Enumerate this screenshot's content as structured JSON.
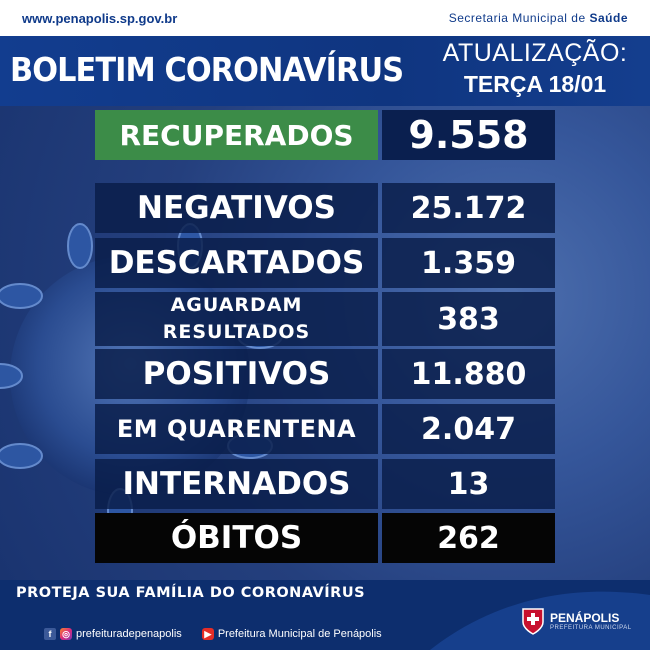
{
  "header": {
    "website": "www.penapolis.sp.gov.br",
    "department_prefix": "Secretaria Municipal de",
    "department_name": "Saúde",
    "title": "BOLETIM CORONAVÍRUS",
    "update_label": "ATUALIZAÇÃO:",
    "update_date": "TERÇA 18/01"
  },
  "stats": [
    {
      "label": "RECUPERADOS",
      "value": "9.558"
    },
    {
      "label": "NEGATIVOS",
      "value": "25.172"
    },
    {
      "label": "DESCARTADOS",
      "value": "1.359"
    },
    {
      "label_line1": "AGUARDAM",
      "label_line2": "RESULTADOS",
      "value": "383"
    },
    {
      "label": "POSITIVOS",
      "value": "11.880"
    },
    {
      "label": "EM QUARENTENA",
      "value": "2.047"
    },
    {
      "label": "INTERNADOS",
      "value": "13"
    },
    {
      "label": "ÓBITOS",
      "value": "262"
    }
  ],
  "footer": {
    "slogan": "PROTEJA SUA FAMÍLIA DO CORONAVÍRUS",
    "social_handle": "prefeituradepenapolis",
    "youtube_channel": "Prefeitura Municipal de Penápolis",
    "logo_name": "PENÁPOLIS",
    "logo_sub": "PREFEITURA MUNICIPAL",
    "icons": [
      "facebook-icon",
      "instagram-icon",
      "youtube-icon"
    ]
  },
  "colors": {
    "brand_blue": "#0f3a8a",
    "recovered_green": "#3c8c48",
    "deaths_black": "#050505"
  }
}
